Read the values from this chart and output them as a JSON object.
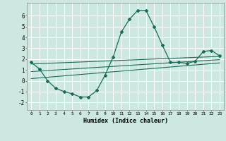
{
  "xlabel": "Humidex (Indice chaleur)",
  "ylabel": "",
  "background_color": "#cce8e0",
  "grid_color": "#ffffff",
  "line_color": "#1a6b5a",
  "xlim": [
    -0.5,
    23.5
  ],
  "ylim": [
    -2.7,
    7.2
  ],
  "yticks": [
    -2,
    -1,
    0,
    1,
    2,
    3,
    4,
    5,
    6
  ],
  "xticks": [
    0,
    1,
    2,
    3,
    4,
    5,
    6,
    7,
    8,
    9,
    10,
    11,
    12,
    13,
    14,
    15,
    16,
    17,
    18,
    19,
    20,
    21,
    22,
    23
  ],
  "curve_x": [
    0,
    1,
    2,
    3,
    4,
    5,
    6,
    7,
    8,
    9,
    10,
    11,
    12,
    13,
    14,
    15,
    16,
    17,
    18,
    19,
    20,
    21,
    22,
    23
  ],
  "curve_y": [
    1.7,
    1.1,
    0.0,
    -0.7,
    -1.0,
    -1.2,
    -1.5,
    -1.5,
    -0.9,
    0.5,
    2.2,
    4.5,
    5.7,
    6.5,
    6.5,
    5.0,
    3.3,
    1.7,
    1.7,
    1.6,
    1.8,
    2.7,
    2.8,
    2.3
  ],
  "line1_x": [
    0,
    23
  ],
  "line1_y": [
    1.55,
    2.25
  ],
  "line2_x": [
    0,
    23
  ],
  "line2_y": [
    0.85,
    1.95
  ],
  "line3_x": [
    0,
    23
  ],
  "line3_y": [
    0.2,
    1.65
  ]
}
